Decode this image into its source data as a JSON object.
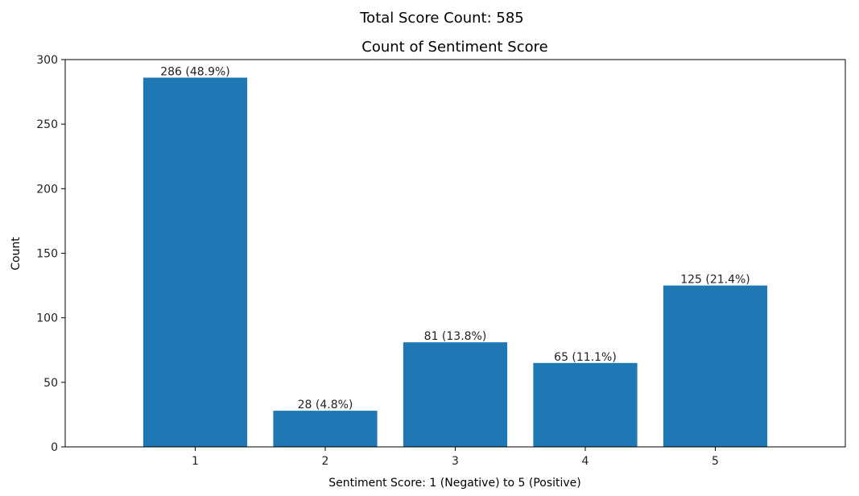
{
  "figure": {
    "suptitle": "Total Score Count: 585"
  },
  "chart_data": {
    "type": "bar",
    "title": "Count of Sentiment Score",
    "xlabel": "Sentiment Score: 1 (Negative) to 5 (Positive)",
    "ylabel": "Count",
    "categories": [
      "1",
      "2",
      "3",
      "4",
      "5"
    ],
    "values": [
      286,
      28,
      81,
      65,
      125
    ],
    "bar_labels": [
      "286 (48.9%)",
      "28 (4.8%)",
      "81 (13.8%)",
      "65 (11.1%)",
      "125 (21.4%)"
    ],
    "ylim": [
      0,
      300
    ],
    "yticks": [
      0,
      50,
      100,
      150,
      200,
      250,
      300
    ],
    "grid": false,
    "colors": {
      "bar": "#1f77b4",
      "axes": "#000000",
      "text": "#222222"
    }
  }
}
